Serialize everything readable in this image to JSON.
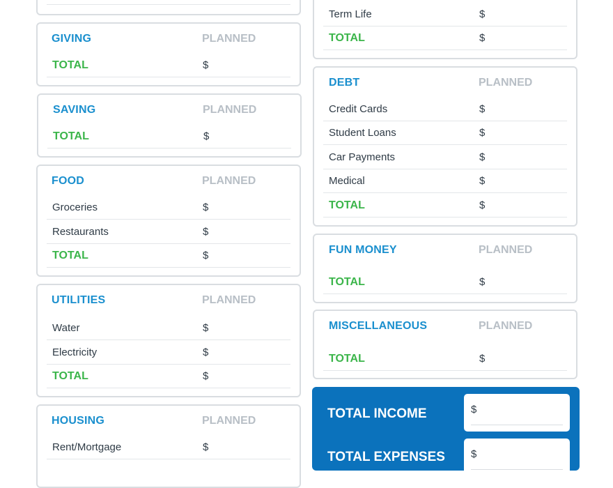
{
  "planned_label": "PLANNED",
  "total_label": "TOTAL",
  "currency": "$",
  "top_left": {},
  "insurance": {
    "items": [
      "Term Life"
    ]
  },
  "giving": {
    "title": "GIVING"
  },
  "saving": {
    "title": "SAVING"
  },
  "food": {
    "title": "FOOD",
    "items": [
      "Groceries",
      "Restaurants"
    ]
  },
  "utilities": {
    "title": "UTILITIES",
    "items": [
      "Water",
      "Electricity"
    ]
  },
  "housing": {
    "title": "HOUSING",
    "items": [
      "Rent/Mortgage"
    ]
  },
  "debt": {
    "title": "DEBT",
    "items": [
      "Credit Cards",
      "Student Loans",
      "Car Payments",
      "Medical"
    ]
  },
  "fun_money": {
    "title": "FUN MONEY"
  },
  "miscellaneous": {
    "title": "MISCELLANEOUS"
  },
  "summary": {
    "total_income": "TOTAL INCOME",
    "total_expenses": "TOTAL EXPENSES"
  },
  "colors": {
    "heading": "#1a8fce",
    "total": "#3bb54a",
    "planned": "#b8bfc6",
    "summary_bg": "#0b72bc"
  }
}
